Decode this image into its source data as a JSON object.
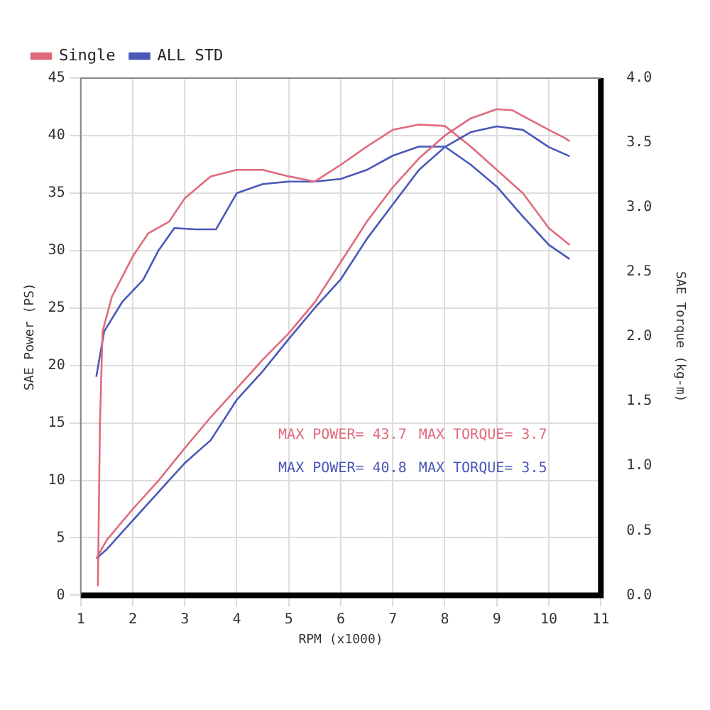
{
  "chart_data": {
    "type": "line",
    "xlabel": "RPM (x1000)",
    "ylabel": "SAE Power (PS)",
    "y2label": "SAE Torque (kg-m)",
    "xlim": [
      1,
      11
    ],
    "xticks": [
      1,
      2,
      3,
      4,
      5,
      6,
      7,
      8,
      9,
      10,
      11
    ],
    "ylim": [
      0,
      45
    ],
    "yticks": [
      0,
      5,
      10,
      15,
      20,
      25,
      30,
      35,
      40,
      45
    ],
    "y2lim": [
      0,
      4
    ],
    "y2ticks": [
      {
        "value": 0,
        "label": "0.0"
      },
      {
        "value": 0.5,
        "label": "0.5"
      },
      {
        "value": 1,
        "label": "1.0"
      },
      {
        "value": 1.5,
        "label": "1.5"
      },
      {
        "value": 2,
        "label": "2.0"
      },
      {
        "value": 2.5,
        "label": "2.5"
      },
      {
        "value": 3,
        "label": "3.0"
      },
      {
        "value": 3.5,
        "label": "3.5"
      },
      {
        "value": 4,
        "label": "4.0"
      }
    ],
    "grid": true,
    "legend": "top left",
    "marker": "none",
    "line_style": "solid",
    "series": [
      {
        "name": "Single",
        "color": "#e06a7c",
        "x": [
          1.3,
          1.5,
          2,
          2.5,
          3,
          3.5,
          4,
          4.5,
          5,
          5.5,
          6,
          6.5,
          7,
          7.5,
          8,
          8.5,
          9,
          9.3,
          9.5,
          10,
          10.3,
          10.4
        ],
        "values": [
          3.2,
          4.8,
          7.5,
          10,
          12.8,
          15.5,
          18,
          20.5,
          22.8,
          25.5,
          29,
          32.5,
          35.5,
          38,
          40,
          41.5,
          42.3,
          42.2,
          41.7,
          40.5,
          39.8,
          39.5
        ]
      },
      {
        "name": "ALL STD",
        "color": "#4a58b8",
        "x": [
          1.3,
          1.5,
          2,
          2.5,
          3,
          3.5,
          4,
          4.5,
          5,
          5.5,
          6,
          6.5,
          7,
          7.5,
          8,
          8.5,
          9,
          9.5,
          10,
          10.4
        ],
        "values": [
          3.2,
          4,
          6.5,
          9,
          11.5,
          13.5,
          17,
          19.5,
          22.3,
          25,
          27.5,
          31,
          34,
          37,
          39,
          40.3,
          40.8,
          40.5,
          39,
          38.2
        ]
      },
      {
        "color": "#e06a7c",
        "axis": "y2",
        "x": [
          1.33,
          1.37,
          1.42,
          1.6,
          2,
          2.3,
          2.7,
          3,
          3.5,
          4,
          4.5,
          5,
          5.5,
          6,
          6.5,
          7,
          7.5,
          8,
          8.5,
          9,
          9.5,
          10,
          10.4
        ],
        "values": [
          0.07,
          1.33,
          2.04,
          2.31,
          2.62,
          2.8,
          2.89,
          3.07,
          3.24,
          3.29,
          3.29,
          3.24,
          3.2,
          3.33,
          3.47,
          3.6,
          3.64,
          3.63,
          3.47,
          3.29,
          3.11,
          2.84,
          2.71
        ]
      },
      {
        "color": "#4a58b8",
        "axis": "y2",
        "x": [
          1.3,
          1.45,
          1.8,
          2.2,
          2.5,
          2.8,
          3.2,
          3.6,
          4,
          4.5,
          5,
          5.5,
          6,
          6.5,
          7,
          7.5,
          8,
          8.5,
          9,
          9.5,
          10,
          10.4
        ],
        "values": [
          1.69,
          2.04,
          2.27,
          2.44,
          2.67,
          2.84,
          2.83,
          2.83,
          3.11,
          3.18,
          3.2,
          3.2,
          3.22,
          3.29,
          3.4,
          3.47,
          3.47,
          3.33,
          3.16,
          2.93,
          2.71,
          2.6
        ]
      }
    ],
    "annotations": [
      "MAX POWER= 43.7",
      "MAX TORQUE= 3.7",
      "MAX POWER= 40.8",
      "MAX TORQUE= 3.5"
    ]
  }
}
